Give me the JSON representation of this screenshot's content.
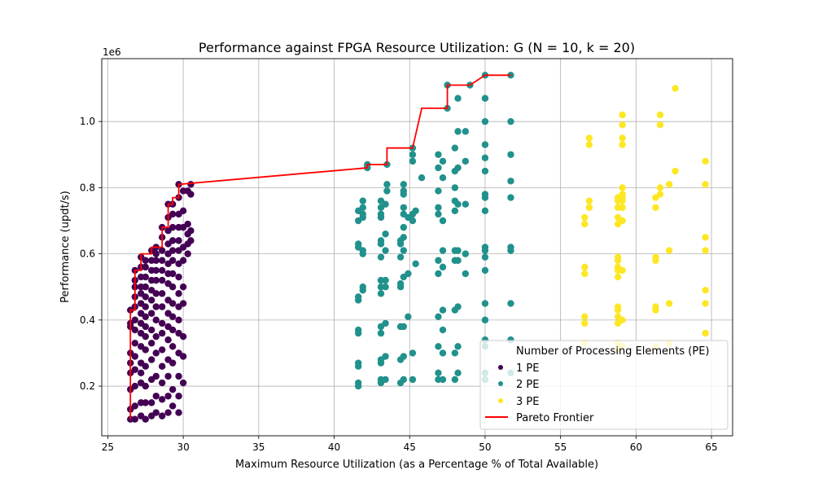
{
  "chart_data": {
    "type": "scatter",
    "title": "Performance against FPGA Resource Utilization: G (N = 10, k = 20)",
    "xlabel": "Maximum Resource Utilization (as a Percentage % of Total Available)",
    "ylabel": "Performance (updt/s)",
    "y_offset_text": "1e6",
    "xlim": [
      24.6,
      66.4
    ],
    "ylim": [
      50000,
      1190000
    ],
    "x_ticks": [
      25,
      30,
      35,
      40,
      45,
      50,
      55,
      60,
      65
    ],
    "y_ticks": [
      0.2,
      0.4,
      0.6,
      0.8,
      1.0
    ],
    "y_tick_labels": [
      "0.2",
      "0.4",
      "0.6",
      "0.8",
      "1.0"
    ],
    "grid": true,
    "legend": {
      "title": "Number of Processing Elements (PE)",
      "placement": "lower right",
      "entries": [
        "1 PE",
        "2 PE",
        "3 PE",
        "Pareto Frontier"
      ]
    },
    "colors": {
      "1 PE": "#440154",
      "2 PE": "#21918c",
      "3 PE": "#fde725",
      "Pareto Frontier": "#ff0000",
      "grid": "#b0b0b0"
    },
    "series": [
      {
        "name": "1 PE",
        "columns": [
          {
            "x": 26.5,
            "y": [
              0.1,
              0.13,
              0.19,
              0.24,
              0.27,
              0.3,
              0.38,
              0.39,
              0.43
            ]
          },
          {
            "x": 26.8,
            "y": [
              0.1,
              0.14,
              0.2,
              0.25,
              0.29,
              0.33,
              0.37,
              0.4,
              0.44,
              0.47,
              0.5,
              0.52,
              0.55
            ]
          },
          {
            "x": 27.2,
            "y": [
              0.11,
              0.15,
              0.21,
              0.24,
              0.27,
              0.32,
              0.36,
              0.39,
              0.42,
              0.45,
              0.48,
              0.5,
              0.53,
              0.56,
              0.59
            ]
          },
          {
            "x": 27.5,
            "y": [
              0.1,
              0.15,
              0.2,
              0.26,
              0.31,
              0.35,
              0.38,
              0.41,
              0.44,
              0.47,
              0.5,
              0.53,
              0.56,
              0.58
            ]
          },
          {
            "x": 27.9,
            "y": [
              0.11,
              0.15,
              0.22,
              0.28,
              0.33,
              0.37,
              0.42,
              0.46,
              0.49,
              0.52,
              0.55,
              0.58,
              0.61
            ]
          },
          {
            "x": 28.2,
            "y": [
              0.12,
              0.17,
              0.23,
              0.3,
              0.35,
              0.4,
              0.44,
              0.48,
              0.52,
              0.55,
              0.58,
              0.6,
              0.62
            ]
          },
          {
            "x": 28.6,
            "y": [
              0.11,
              0.16,
              0.21,
              0.26,
              0.31,
              0.36,
              0.39,
              0.44,
              0.48,
              0.52,
              0.55,
              0.58,
              0.61,
              0.65,
              0.68
            ]
          },
          {
            "x": 29.0,
            "y": [
              0.12,
              0.17,
              0.23,
              0.28,
              0.34,
              0.38,
              0.42,
              0.46,
              0.51,
              0.54,
              0.57,
              0.6,
              0.63,
              0.67,
              0.71,
              0.75
            ]
          },
          {
            "x": 29.3,
            "y": [
              0.14,
              0.19,
              0.27,
              0.32,
              0.37,
              0.41,
              0.45,
              0.5,
              0.54,
              0.58,
              0.61,
              0.64,
              0.68,
              0.72,
              0.75
            ]
          },
          {
            "x": 29.7,
            "y": [
              0.12,
              0.17,
              0.23,
              0.3,
              0.36,
              0.4,
              0.44,
              0.48,
              0.53,
              0.57,
              0.61,
              0.64,
              0.68,
              0.72,
              0.77,
              0.81
            ]
          },
          {
            "x": 30.0,
            "y": [
              0.21,
              0.29,
              0.35,
              0.45,
              0.5,
              0.58,
              0.62,
              0.68,
              0.73,
              0.79
            ]
          },
          {
            "x": 30.3,
            "y": [
              0.6,
              0.63,
              0.66,
              0.69,
              0.79
            ]
          },
          {
            "x": 30.5,
            "y": [
              0.64,
              0.67,
              0.78,
              0.81
            ]
          }
        ]
      },
      {
        "name": "2 PE",
        "columns": [
          {
            "x": 41.6,
            "y": [
              0.2,
              0.21,
              0.26,
              0.27,
              0.36,
              0.37,
              0.46,
              0.47,
              0.62,
              0.63,
              0.7,
              0.73
            ]
          },
          {
            "x": 41.9,
            "y": [
              0.49,
              0.5,
              0.6,
              0.61,
              0.71,
              0.72,
              0.74,
              0.76
            ]
          },
          {
            "x": 42.2,
            "y": [
              0.86,
              0.87
            ]
          },
          {
            "x": 43.1,
            "y": [
              0.21,
              0.22,
              0.27,
              0.28,
              0.36,
              0.38,
              0.48,
              0.5,
              0.52,
              0.59,
              0.63,
              0.64,
              0.71,
              0.72,
              0.74,
              0.76
            ]
          },
          {
            "x": 43.4,
            "y": [
              0.22,
              0.29,
              0.39,
              0.5,
              0.52,
              0.61,
              0.66,
              0.75
            ]
          },
          {
            "x": 43.5,
            "y": [
              0.79,
              0.81,
              0.87
            ]
          },
          {
            "x": 44.4,
            "y": [
              0.21,
              0.28,
              0.38,
              0.5,
              0.51,
              0.59,
              0.63,
              0.64
            ]
          },
          {
            "x": 44.6,
            "y": [
              0.22,
              0.29,
              0.38,
              0.53,
              0.61,
              0.65,
              0.68,
              0.72,
              0.74,
              0.78,
              0.79,
              0.81
            ]
          },
          {
            "x": 44.9,
            "y": [
              0.41,
              0.54,
              0.71
            ]
          },
          {
            "x": 45.2,
            "y": [
              0.22,
              0.3,
              0.7,
              0.72,
              0.88,
              0.9,
              0.92
            ]
          },
          {
            "x": 45.4,
            "y": [
              0.57,
              0.73
            ]
          },
          {
            "x": 45.8,
            "y": [
              0.83
            ]
          },
          {
            "x": 46.9,
            "y": [
              0.22,
              0.24,
              0.32,
              0.41,
              0.54,
              0.58,
              0.72,
              0.74,
              0.79,
              0.86,
              0.9
            ]
          },
          {
            "x": 47.2,
            "y": [
              0.22,
              0.3,
              0.37,
              0.43,
              0.56,
              0.61,
              0.7,
              0.83,
              0.88
            ]
          },
          {
            "x": 47.5,
            "y": [
              1.04,
              1.11
            ]
          },
          {
            "x": 48.0,
            "y": [
              0.22,
              0.3,
              0.43,
              0.58,
              0.61,
              0.73,
              0.76,
              0.8,
              0.85,
              0.92
            ]
          },
          {
            "x": 48.2,
            "y": [
              0.24,
              0.32,
              0.44,
              0.58,
              0.61,
              0.75,
              0.86,
              0.97,
              1.07
            ]
          },
          {
            "x": 48.7,
            "y": [
              0.54,
              0.6,
              0.75,
              0.88,
              0.97
            ]
          },
          {
            "x": 49.0,
            "y": [
              1.11
            ]
          },
          {
            "x": 50.0,
            "y": [
              0.22,
              0.24,
              0.32,
              0.34,
              0.4,
              0.45,
              0.55,
              0.59,
              0.61,
              0.62,
              0.73,
              0.77,
              0.78,
              0.85,
              0.89,
              0.93,
              1.0,
              1.07,
              1.14
            ]
          },
          {
            "x": 51.7,
            "y": [
              0.24,
              0.34,
              0.45,
              0.61,
              0.62,
              0.77,
              0.82,
              0.9,
              1.0,
              1.14
            ]
          }
        ]
      },
      {
        "name": "3 PE",
        "columns": [
          {
            "x": 56.6,
            "y": [
              0.33,
              0.39,
              0.41,
              0.54,
              0.56,
              0.69,
              0.71
            ]
          },
          {
            "x": 56.9,
            "y": [
              0.74,
              0.76,
              0.93,
              0.95
            ]
          },
          {
            "x": 58.8,
            "y": [
              0.31,
              0.33,
              0.39,
              0.41,
              0.43,
              0.44,
              0.53,
              0.55,
              0.56,
              0.58,
              0.59,
              0.69,
              0.71,
              0.74,
              0.76,
              0.77
            ]
          },
          {
            "x": 59.1,
            "y": [
              0.32,
              0.4,
              0.55,
              0.7,
              0.74,
              0.76,
              0.77,
              0.78,
              0.8,
              0.93,
              0.95,
              0.99,
              1.02
            ]
          },
          {
            "x": 61.3,
            "y": [
              0.32,
              0.43,
              0.44,
              0.58,
              0.59,
              0.74,
              0.77
            ]
          },
          {
            "x": 61.6,
            "y": [
              0.78,
              0.8,
              0.99,
              1.02
            ]
          },
          {
            "x": 62.2,
            "y": [
              0.33,
              0.45,
              0.61,
              0.81
            ]
          },
          {
            "x": 62.6,
            "y": [
              0.85,
              1.1
            ]
          },
          {
            "x": 64.6,
            "y": [
              0.36,
              0.45,
              0.49,
              0.61,
              0.65,
              0.81,
              0.88
            ]
          }
        ]
      }
    ],
    "pareto_frontier": [
      [
        26.5,
        0.1
      ],
      [
        26.5,
        0.43
      ],
      [
        26.8,
        0.43
      ],
      [
        26.8,
        0.55
      ],
      [
        27.2,
        0.55
      ],
      [
        27.2,
        0.6
      ],
      [
        27.9,
        0.6
      ],
      [
        27.9,
        0.62
      ],
      [
        28.6,
        0.62
      ],
      [
        28.6,
        0.68
      ],
      [
        29.0,
        0.68
      ],
      [
        29.0,
        0.75
      ],
      [
        29.3,
        0.75
      ],
      [
        29.3,
        0.77
      ],
      [
        29.7,
        0.77
      ],
      [
        29.7,
        0.81
      ],
      [
        42.2,
        0.86
      ],
      [
        42.2,
        0.87
      ],
      [
        43.5,
        0.87
      ],
      [
        43.5,
        0.92
      ],
      [
        45.2,
        0.92
      ],
      [
        45.8,
        1.04
      ],
      [
        47.5,
        1.04
      ],
      [
        47.5,
        1.11
      ],
      [
        49.0,
        1.11
      ],
      [
        50.0,
        1.14
      ],
      [
        51.7,
        1.14
      ]
    ]
  }
}
